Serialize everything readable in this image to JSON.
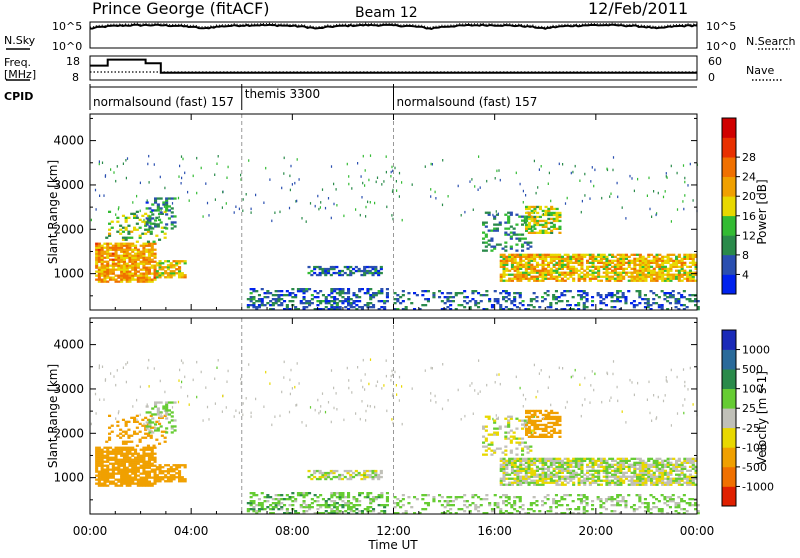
{
  "header": {
    "station": "Prince George (fitACF)",
    "beam": "Beam 12",
    "date": "12/Feb/2011"
  },
  "panels": {
    "nsky_label": "N.Sky",
    "nsearch_label": "N.Search",
    "freq_label": "Freq.",
    "freq_unit": "[MHz]",
    "nave_label": "Nave",
    "cpid_label": "CPID",
    "noise_ticks": [
      "10^5",
      "10^0"
    ],
    "freq_ticks": [
      "18",
      "8"
    ],
    "nave_ticks": [
      "60",
      "0"
    ],
    "cpid_segments": [
      {
        "label": "normalsound (fast) 157",
        "start_hour": 0
      },
      {
        "label": "themis 3300",
        "start_hour": 6
      },
      {
        "label": "normalsound (fast) 157",
        "start_hour": 12
      }
    ]
  },
  "axes": {
    "ylabel": "Slant Range [km]",
    "xlabel": "Time UT",
    "x_ticks": [
      "00:00",
      "04:00",
      "08:00",
      "12:00",
      "16:00",
      "20:00",
      "00:00"
    ],
    "y_ticks": [
      "1000",
      "2000",
      "3000",
      "4000"
    ]
  },
  "colorbars": {
    "power_label": "Power [dB]",
    "power_ticks": [
      "4",
      "8",
      "12",
      "16",
      "20",
      "24",
      "28"
    ],
    "power_colors": [
      "#0022ee",
      "#2a4fb0",
      "#2a8a4a",
      "#33bb33",
      "#e8d800",
      "#f0a000",
      "#f07000",
      "#e83000",
      "#d00000"
    ],
    "velocity_label": "Velocity [m s-1]",
    "velocity_ticks": [
      "1000",
      "500",
      "100",
      "25",
      "-25",
      "-100",
      "-500",
      "-1000"
    ],
    "velocity_colors": [
      "#1a2ab8",
      "#2a6a9a",
      "#2a8a4a",
      "#66cc33",
      "#c0c0b8",
      "#e8d800",
      "#f0a000",
      "#f07000",
      "#e02000"
    ]
  },
  "chart_data": {
    "type": "heatmap",
    "title": "Prince George (fitACF)",
    "xlabel": "Time UT",
    "ylabel": "Slant Range [km]",
    "xlim": [
      0,
      24
    ],
    "ylim": [
      180,
      4600
    ],
    "power_scale_db": [
      0,
      32
    ],
    "velocity_scale_ms": [
      -1200,
      1200
    ],
    "noise_sky_range": [
      1,
      100000
    ],
    "freq_range_mhz": [
      8,
      18
    ],
    "nave_range": [
      0,
      60
    ],
    "frequency_steps": [
      {
        "from": 0,
        "to": 0.7,
        "mhz": 14
      },
      {
        "from": 0.7,
        "to": 2.2,
        "mhz": 16.5
      },
      {
        "from": 2.2,
        "to": 2.8,
        "mhz": 15
      },
      {
        "from": 2.8,
        "to": 24,
        "mhz": 11
      }
    ],
    "scatter_regions": [
      {
        "t0": 0.2,
        "t1": 2.6,
        "r0": 800,
        "r1": 1700,
        "power": 20,
        "velocity": -250,
        "density": 0.8
      },
      {
        "t0": 0.6,
        "t1": 3.0,
        "r0": 1700,
        "r1": 2400,
        "power": 13,
        "velocity": -200,
        "density": 0.25
      },
      {
        "t0": 2.6,
        "t1": 3.8,
        "r0": 900,
        "r1": 1300,
        "power": 17,
        "velocity": -300,
        "density": 0.65
      },
      {
        "t0": 2.2,
        "t1": 3.4,
        "r0": 2000,
        "r1": 2700,
        "power": 8,
        "velocity": 40,
        "density": 0.35
      },
      {
        "t0": 6.2,
        "t1": 11.8,
        "r0": 180,
        "r1": 650,
        "power": 6,
        "velocity": 60,
        "density": 0.45
      },
      {
        "t0": 8.6,
        "t1": 11.5,
        "r0": 950,
        "r1": 1150,
        "power": 6,
        "velocity": 0,
        "density": 0.55
      },
      {
        "t0": 15.5,
        "t1": 17.5,
        "r0": 1500,
        "r1": 2400,
        "power": 9,
        "velocity": 0,
        "density": 0.25
      },
      {
        "t0": 17.2,
        "t1": 18.6,
        "r0": 1900,
        "r1": 2500,
        "power": 15,
        "velocity": -300,
        "density": 0.55
      },
      {
        "t0": 16.2,
        "t1": 24,
        "r0": 820,
        "r1": 1450,
        "power": 18,
        "velocity": 5,
        "density": 0.75
      },
      {
        "t0": 12.0,
        "t1": 24,
        "r0": 180,
        "r1": 600,
        "power": 6,
        "velocity": 40,
        "density": 0.3
      }
    ]
  }
}
